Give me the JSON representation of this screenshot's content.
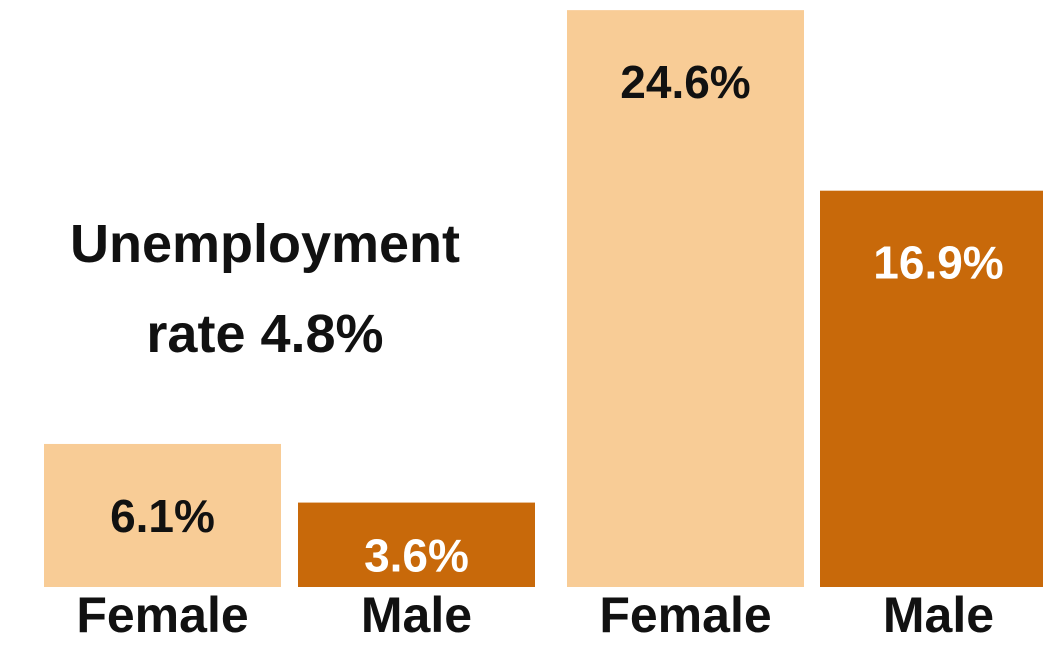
{
  "annotation": {
    "line1": "Unemployment",
    "line2": "rate 4.8%"
  },
  "colors": {
    "female": "#f8cc96",
    "male": "#c8690a",
    "female_label": "#111111",
    "male_label": "#ffffff",
    "category_label": "#111111"
  },
  "chart_data": {
    "type": "bar",
    "title": "",
    "xlabel": "",
    "ylabel": "",
    "ylim": [
      0,
      25
    ],
    "annotation": "Unemployment rate 4.8%",
    "groups": [
      {
        "bars": [
          {
            "category": "Female",
            "value": 6.1,
            "label": "6.1%",
            "color_key": "female"
          },
          {
            "category": "Male",
            "value": 3.6,
            "label": "3.6%",
            "color_key": "male"
          }
        ]
      },
      {
        "bars": [
          {
            "category": "Female",
            "value": 24.6,
            "label": "24.6%",
            "color_key": "female"
          },
          {
            "category": "Male",
            "value": 16.9,
            "label": "16.9%",
            "color_key": "male"
          }
        ]
      }
    ]
  }
}
